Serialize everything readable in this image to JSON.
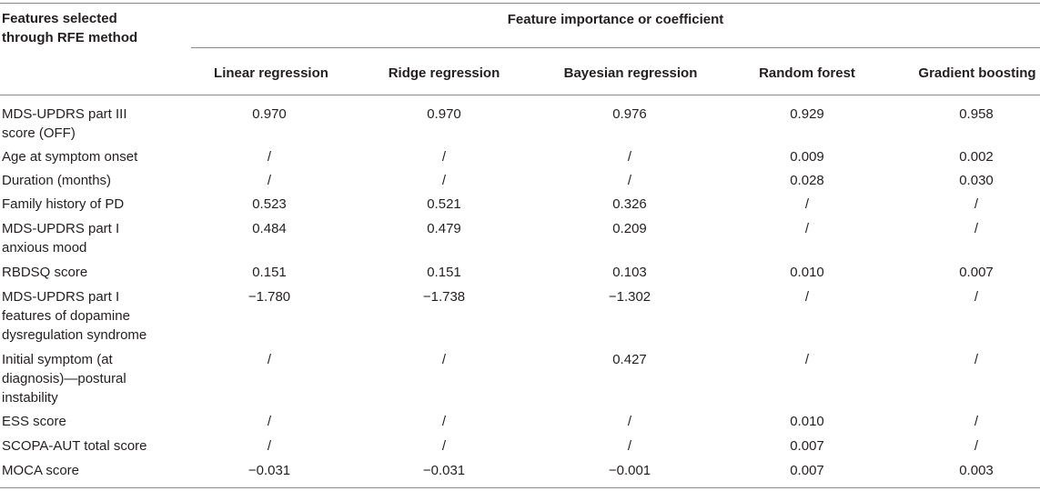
{
  "table": {
    "header": {
      "first_col_line1": "Features selected",
      "first_col_line2": "through RFE method",
      "group_title": "Feature importance or coefficient",
      "models": [
        "Linear regression",
        "Ridge regression",
        "Bayesian regression",
        "Random forest",
        "Gradient boosting"
      ]
    },
    "rows": [
      {
        "feature_lines": [
          "MDS-UPDRS part III",
          "score (OFF)"
        ],
        "values": [
          "0.970",
          "0.970",
          "0.976",
          "0.929",
          "0.958"
        ]
      },
      {
        "feature_lines": [
          "Age at symptom onset"
        ],
        "values": [
          "/",
          "/",
          "/",
          "0.009",
          "0.002"
        ]
      },
      {
        "feature_lines": [
          "Duration (months)"
        ],
        "values": [
          "/",
          "/",
          "/",
          "0.028",
          "0.030"
        ]
      },
      {
        "feature_lines": [
          "Family history of PD"
        ],
        "values": [
          "0.523",
          "0.521",
          "0.326",
          "/",
          "/"
        ]
      },
      {
        "feature_lines": [
          "MDS-UPDRS part I",
          "anxious mood"
        ],
        "values": [
          "0.484",
          "0.479",
          "0.209",
          "/",
          "/"
        ]
      },
      {
        "feature_lines": [
          "RBDSQ score"
        ],
        "values": [
          "0.151",
          "0.151",
          "0.103",
          "0.010",
          "0.007"
        ]
      },
      {
        "feature_lines": [
          "MDS-UPDRS part I",
          "features of dopamine",
          "dysregulation syndrome"
        ],
        "values": [
          "−1.780",
          "−1.738",
          "−1.302",
          "/",
          "/"
        ]
      },
      {
        "feature_lines": [
          "Initial symptom (at",
          "diagnosis)—postural",
          "instability"
        ],
        "values": [
          "/",
          "/",
          "0.427",
          "/",
          "/"
        ]
      },
      {
        "feature_lines": [
          "ESS score"
        ],
        "values": [
          "/",
          "/",
          "/",
          "0.010",
          "/"
        ]
      },
      {
        "feature_lines": [
          "SCOPA-AUT total score"
        ],
        "values": [
          "/",
          "/",
          "/",
          "0.007",
          "/"
        ]
      },
      {
        "feature_lines": [
          "MOCA score"
        ],
        "values": [
          "−0.031",
          "−0.031",
          "−0.001",
          "0.007",
          "0.003"
        ]
      }
    ]
  }
}
